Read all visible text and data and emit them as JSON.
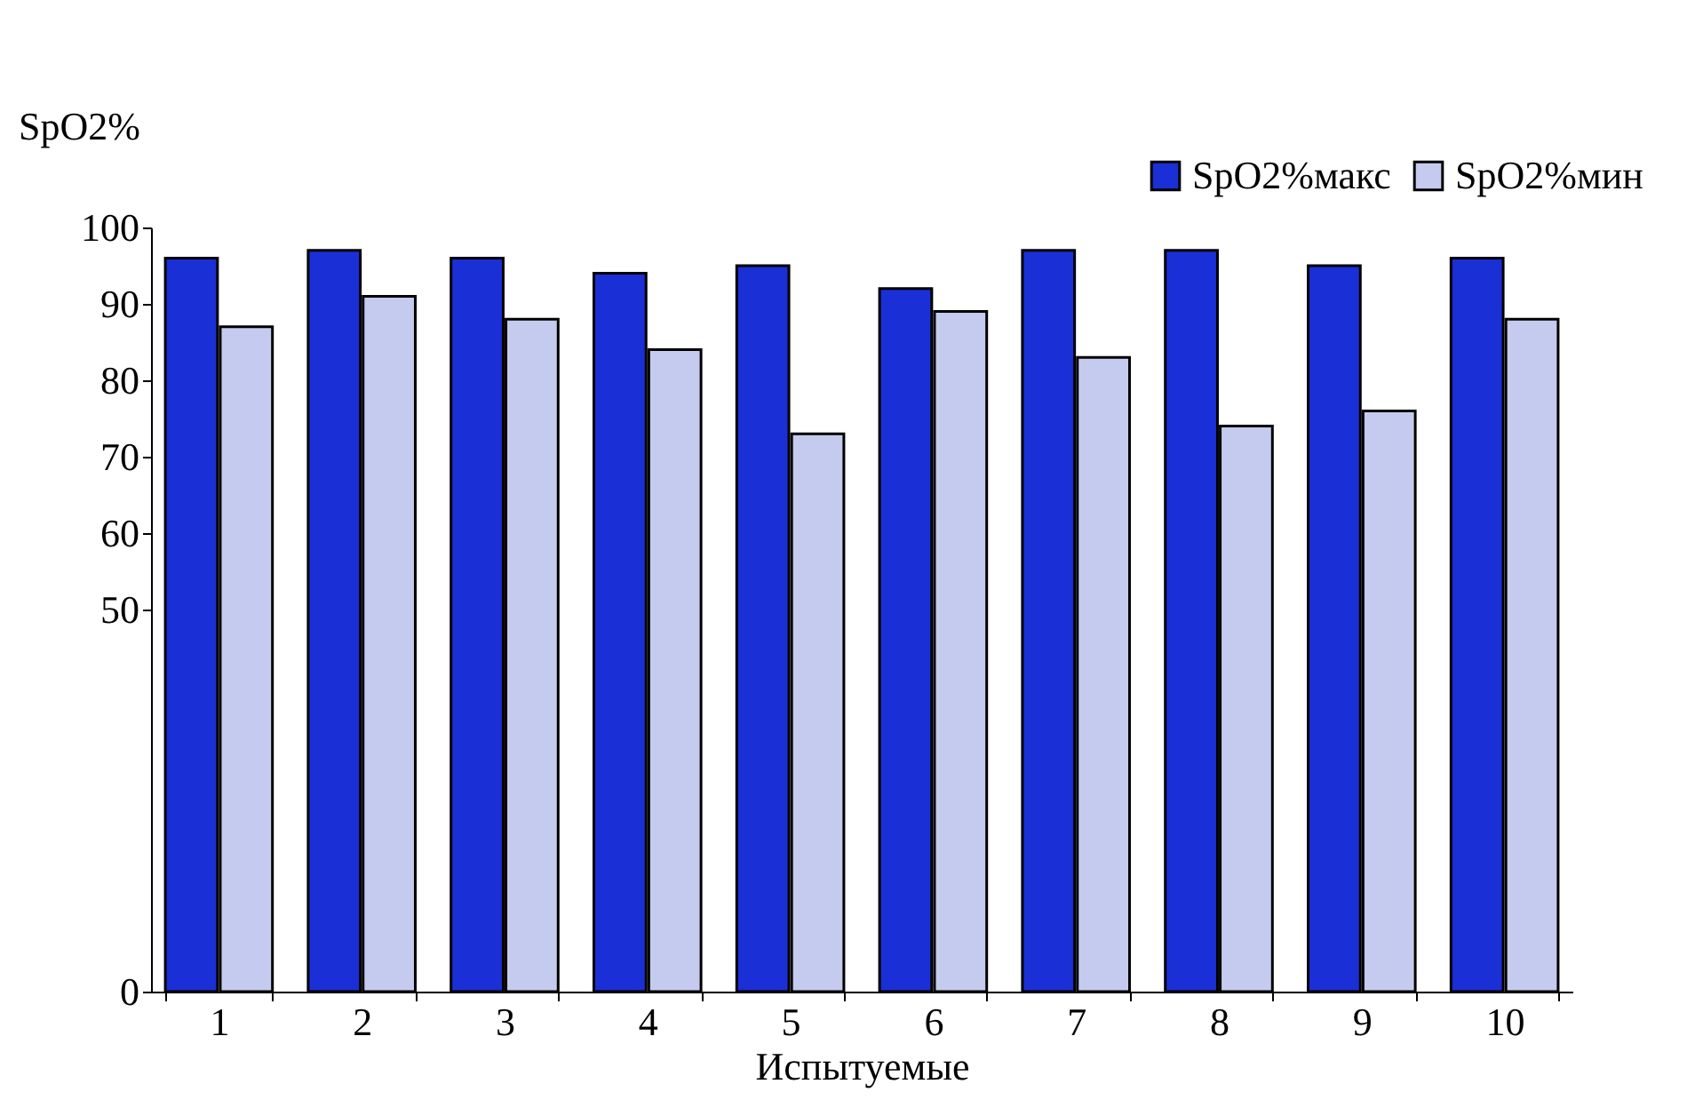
{
  "chart_data": {
    "type": "bar",
    "xlabel": "Испытуемые",
    "ylabel": "SpO2%",
    "categories": [
      "1",
      "2",
      "3",
      "4",
      "5",
      "6",
      "7",
      "8",
      "9",
      "10"
    ],
    "series": [
      {
        "name": "SpO2%макс",
        "color": "#1a2fd6",
        "values": [
          96,
          97,
          96,
          94,
          95,
          92,
          97,
          97,
          95,
          96
        ]
      },
      {
        "name": "SpO2%мин",
        "color": "#c5cbee",
        "values": [
          87,
          91,
          88,
          84,
          73,
          89,
          83,
          74,
          76,
          88
        ]
      }
    ],
    "ylim": [
      0,
      100
    ],
    "yticks": [
      0,
      50,
      60,
      70,
      80,
      90,
      100
    ],
    "grid": false,
    "legend": "top right"
  }
}
